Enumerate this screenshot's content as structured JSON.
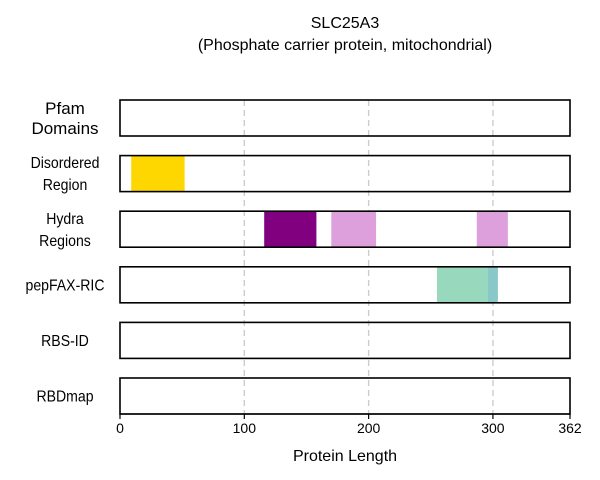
{
  "chart_data": {
    "type": "domain-track",
    "title": "SLC25A3",
    "subtitle": "(Phosphate carrier protein, mitochondrial)",
    "xlabel": "Protein Length",
    "xlim": [
      0,
      362
    ],
    "xticks": [
      "0",
      "100",
      "200",
      "300",
      "362"
    ],
    "xtick_values": [
      0,
      100,
      200,
      300,
      362
    ],
    "gridlines": [
      100,
      200,
      300
    ],
    "grid": "dashed vertical",
    "tracks": [
      {
        "label_lines": [
          "Pfam",
          "Domains"
        ],
        "segments": []
      },
      {
        "label_lines": [
          "Disordered",
          "Region"
        ],
        "segments": [
          {
            "start": 9,
            "end": 52,
            "color": "#ffd700"
          }
        ]
      },
      {
        "label_lines": [
          "Hydra",
          "Regions"
        ],
        "segments": [
          {
            "start": 116,
            "end": 158,
            "color": "#800080"
          },
          {
            "start": 170,
            "end": 206,
            "color": "#dda0dd"
          },
          {
            "start": 287,
            "end": 312,
            "color": "#dda0dd"
          }
        ]
      },
      {
        "label_lines": [
          "pepFAX-RIC"
        ],
        "segments": [
          {
            "start": 255,
            "end": 296,
            "color": "#98d8bd"
          },
          {
            "start": 296,
            "end": 304,
            "color": "#88c8c8"
          }
        ]
      },
      {
        "label_lines": [
          "RBS-ID"
        ],
        "segments": []
      },
      {
        "label_lines": [
          "RBDmap"
        ],
        "segments": []
      }
    ]
  }
}
